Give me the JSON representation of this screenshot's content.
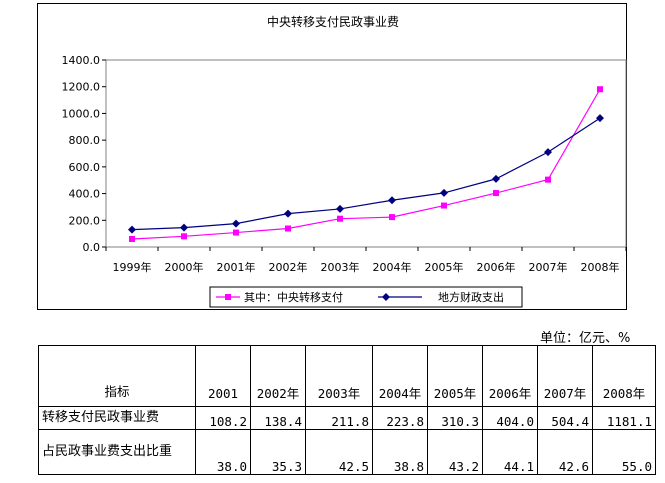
{
  "chart_data": {
    "type": "line",
    "title": "中央转移支付民政事业费",
    "categories": [
      "1999年",
      "2000年",
      "2001年",
      "2002年",
      "2003年",
      "2004年",
      "2005年",
      "2006年",
      "2007年",
      "2008年"
    ],
    "y_ticks": [
      "0.0",
      "200.0",
      "400.0",
      "600.0",
      "800.0",
      "1000.0",
      "1200.0",
      "1400.0"
    ],
    "ylim": [
      0,
      1400
    ],
    "grid": false,
    "legend": "bottom",
    "series": [
      {
        "name": "其中：中央转移支付",
        "color": "#ff00ff",
        "marker": "square",
        "values": [
          60,
          80,
          108.2,
          138.4,
          211.8,
          223.8,
          310.3,
          404.0,
          504.4,
          1181.1
        ]
      },
      {
        "name": "地方财政支出",
        "color": "#000080",
        "marker": "diamond",
        "values": [
          130,
          145,
          175,
          250,
          285,
          350,
          405,
          510,
          710,
          965
        ]
      }
    ]
  },
  "unit": "单位：亿元、%",
  "table": {
    "header_label": "指标",
    "years": [
      "2001",
      "2002年",
      "2003年",
      "2004年",
      "2005年",
      "2006年",
      "2007年",
      "2008年"
    ],
    "rows": [
      {
        "label": "转移支付民政事业费",
        "values": [
          "108.2",
          "138.4",
          "211.8",
          "223.8",
          "310.3",
          "404.0",
          "504.4",
          "1181.1"
        ]
      },
      {
        "label": "占民政事业费支出比重",
        "values": [
          "38.0",
          "35.3",
          "42.5",
          "38.8",
          "43.2",
          "44.1",
          "42.6",
          "55.0"
        ]
      }
    ]
  }
}
